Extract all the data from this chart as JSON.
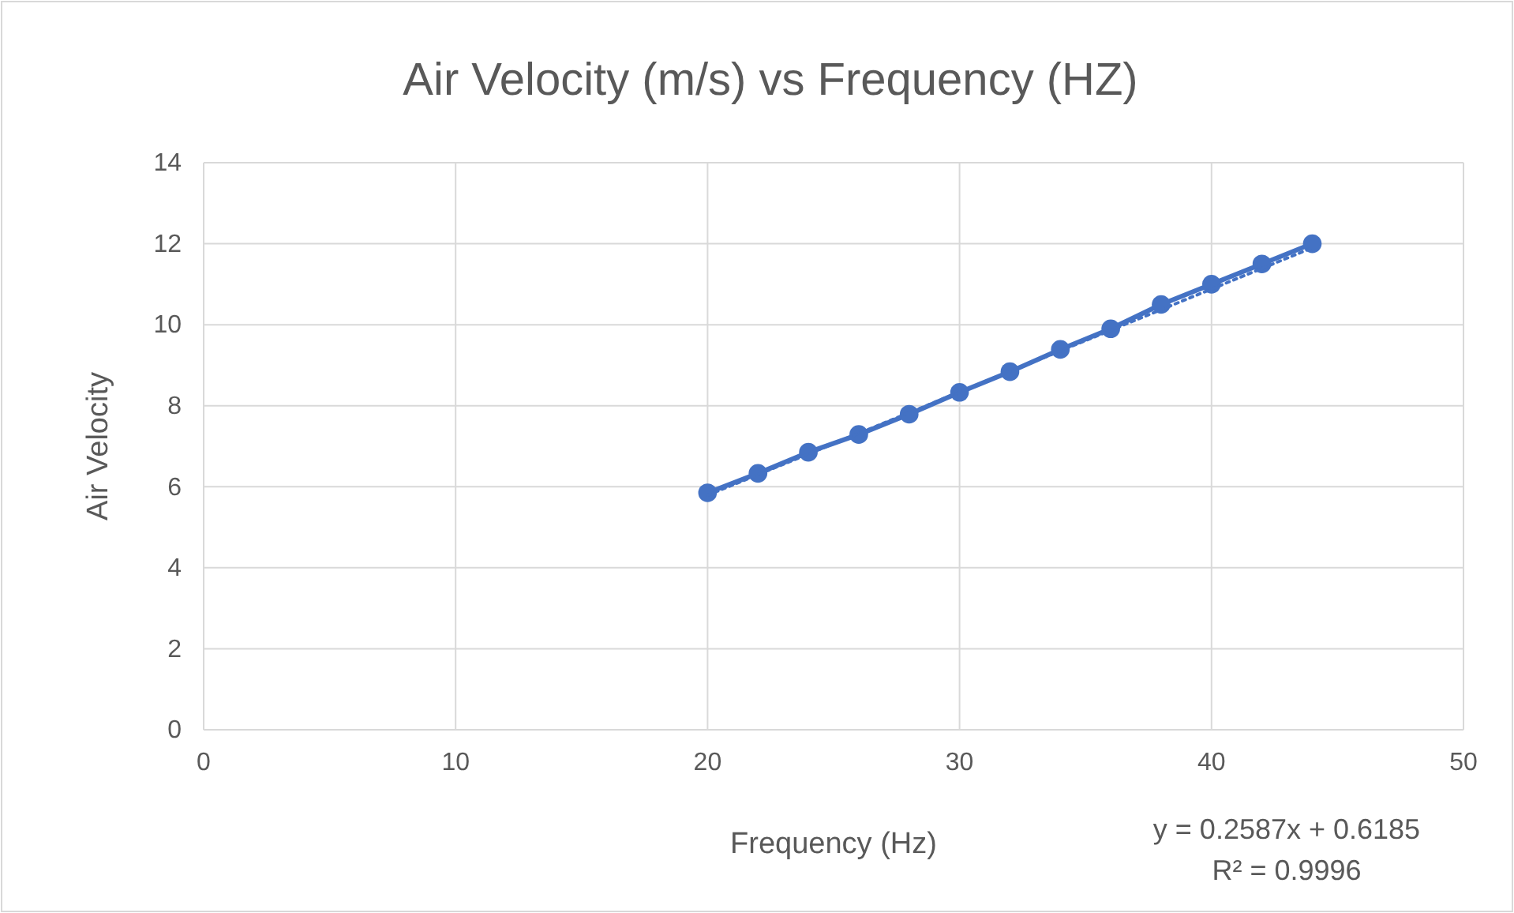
{
  "chart_data": {
    "type": "line",
    "title": "Air Velocity (m/s) vs Frequency (HZ)",
    "xlabel": "Frequency (Hz)",
    "ylabel": "Air Velocity",
    "x": [
      20,
      22,
      24,
      26,
      28,
      30,
      32,
      34,
      36,
      38,
      40,
      42,
      44
    ],
    "series": [
      {
        "color": "#4472c4",
        "marker": "circle",
        "values": [
          5.85,
          6.33,
          6.85,
          7.29,
          7.79,
          8.33,
          8.84,
          9.39,
          9.9,
          10.5,
          11.0,
          11.5,
          12.0
        ]
      },
      {
        "type": "line",
        "color": "#4472c4",
        "line_style": "dotted",
        "marker": "none",
        "x": [
          20,
          44
        ],
        "values": [
          5.79,
          11.9
        ]
      }
    ],
    "xlim": [
      0,
      50
    ],
    "xticks": [
      0,
      10,
      20,
      30,
      40,
      50
    ],
    "ylim": [
      0,
      14
    ],
    "yticks": [
      0,
      2,
      4,
      6,
      8,
      10,
      12,
      14
    ],
    "grid": true,
    "annotations": [
      "y = 0.2587x + 0.6185",
      "R² = 0.9996"
    ]
  }
}
